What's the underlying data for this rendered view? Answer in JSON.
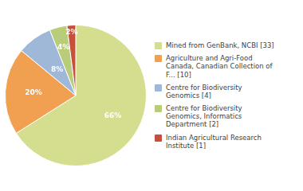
{
  "chart_data": {
    "type": "pie",
    "categories": [
      "Mined from GenBank, NCBI [33]",
      "Agriculture and Agri-Food\nCanada, Canadian Collection of\nF... [10]",
      "Centre for Biodiversity\nGenomics [4]",
      "Centre for Biodiversity\nGenomics, Informatics\nDepartment [2]",
      "Indian Agricultural Research\nInstitute [1]"
    ],
    "values": [
      66,
      20,
      8,
      4,
      2
    ],
    "value_labels": [
      "66%",
      "20%",
      "8%",
      "4%",
      "2%"
    ],
    "colors": [
      "#d4de8e",
      "#f0a050",
      "#a0b8d8",
      "#b8cc7a",
      "#c8503a"
    ],
    "data_labels": true,
    "legend": "right"
  }
}
